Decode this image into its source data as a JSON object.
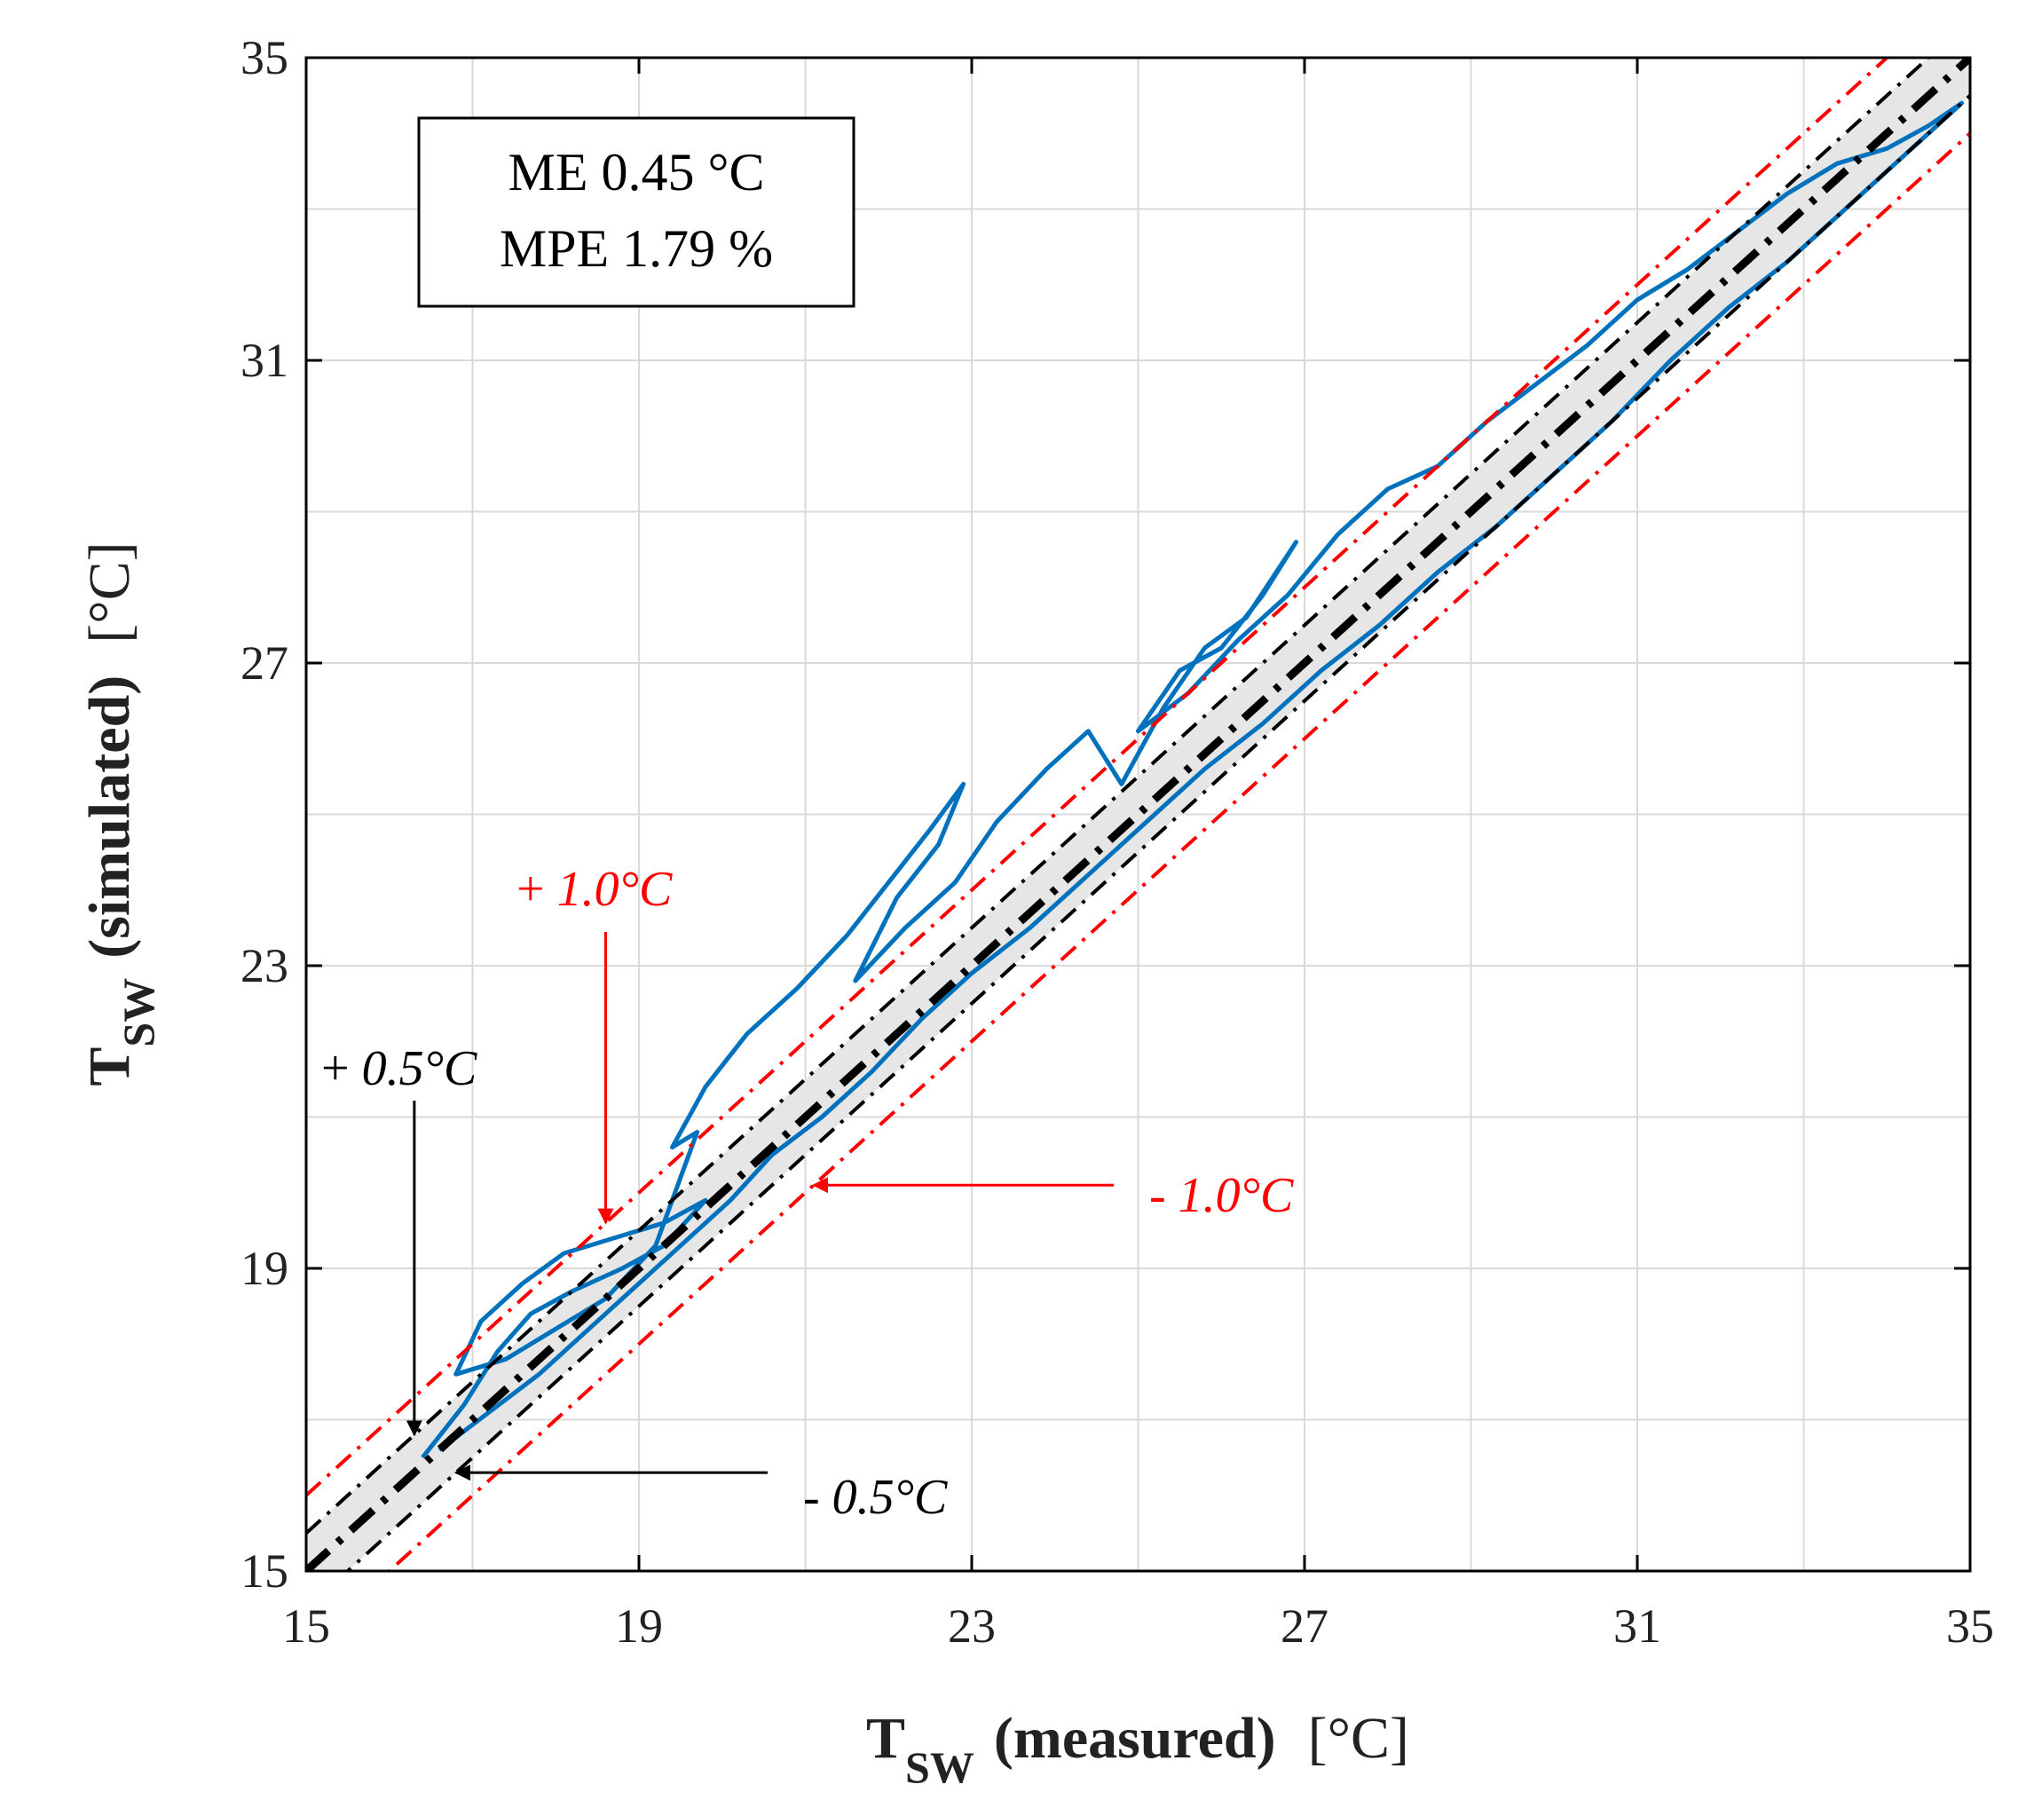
{
  "chart_data": {
    "type": "scatter",
    "title": "",
    "xlabel": {
      "main": "T",
      "sub": "SW",
      "qualifier": "(measured)",
      "unit": "[°C]"
    },
    "ylabel": {
      "main": "T",
      "sub": "SW",
      "qualifier": "(simulated)",
      "unit": "[°C]"
    },
    "xlim": [
      15,
      35
    ],
    "ylim": [
      15,
      35
    ],
    "xticks": [
      15,
      19,
      23,
      27,
      31,
      35
    ],
    "yticks": [
      15,
      19,
      23,
      27,
      31,
      35
    ],
    "xtick_labels": [
      "15",
      "19",
      "23",
      "27",
      "31",
      "35"
    ],
    "ytick_labels": [
      "15",
      "19",
      "23",
      "27",
      "31",
      "35"
    ],
    "grid": true,
    "minor_grid_step": 2,
    "stats": {
      "me": "ME 0.45 °C",
      "mpe": "MPE 1.79 %"
    },
    "band_fill_offset": 0.5,
    "reference_lines": [
      {
        "name": "identity",
        "offset": 0,
        "color": "#000000",
        "label": ""
      },
      {
        "name": "plus-0.5",
        "offset": 0.5,
        "color": "#000000",
        "label": "+ 0.5°C"
      },
      {
        "name": "minus-0.5",
        "offset": -0.5,
        "color": "#000000",
        "label": "- 0.5°C"
      },
      {
        "name": "plus-1.0",
        "offset": 1.0,
        "color": "#ff0000",
        "label": "+ 1.0°C"
      },
      {
        "name": "minus-1.0",
        "offset": -1.0,
        "color": "#ff0000",
        "label": "- 1.0°C"
      }
    ],
    "series": [
      {
        "name": "simulated-vs-measured",
        "color": "#0072bd",
        "x": [
          16.4,
          16.9,
          17.3,
          17.7,
          18.2,
          18.8,
          19.3,
          19.8,
          19.3,
          18.7,
          18.1,
          17.6,
          17.1,
          16.8,
          17.4,
          18.0,
          18.6,
          19.2,
          19.7,
          19.4,
          19.8,
          20.3,
          20.9,
          21.5,
          22.0,
          22.5,
          22.9,
          22.6,
          22.1,
          21.6,
          22.2,
          22.8,
          23.3,
          23.9,
          24.4,
          24.8,
          25.3,
          25.8,
          26.3,
          26.9,
          26.5,
          26.0,
          25.5,
          25.0,
          25.6,
          26.2,
          26.8,
          27.4,
          28.0,
          28.6,
          29.2,
          29.8,
          30.4,
          31.0,
          31.6,
          32.2,
          32.8,
          33.4,
          34.0,
          34.5,
          34.9,
          34.2,
          33.5,
          32.8,
          32.1,
          31.4,
          30.7,
          30.0,
          29.3,
          28.6,
          27.9,
          27.2,
          26.5,
          25.8,
          25.1,
          24.4,
          23.7,
          23.0,
          22.4,
          21.8,
          21.2,
          20.6,
          20.1,
          19.6,
          19.0,
          18.4,
          17.8,
          17.2,
          16.6
        ],
        "y": [
          16.5,
          17.2,
          17.9,
          18.4,
          18.7,
          19.0,
          19.3,
          19.9,
          19.6,
          19.4,
          19.2,
          18.8,
          18.3,
          17.6,
          17.8,
          18.2,
          18.6,
          19.3,
          20.8,
          20.6,
          21.4,
          22.1,
          22.7,
          23.4,
          24.1,
          24.8,
          25.4,
          24.6,
          23.9,
          22.8,
          23.5,
          24.1,
          24.9,
          25.6,
          26.1,
          25.4,
          26.4,
          27.2,
          27.6,
          28.6,
          27.9,
          27.2,
          26.9,
          26.1,
          26.6,
          27.3,
          27.9,
          28.7,
          29.3,
          29.6,
          30.2,
          30.7,
          31.2,
          31.8,
          32.2,
          32.7,
          33.2,
          33.6,
          33.8,
          34.1,
          34.4,
          33.7,
          33.0,
          32.3,
          31.7,
          31.0,
          30.2,
          29.5,
          28.8,
          28.2,
          27.5,
          26.9,
          26.2,
          25.6,
          24.9,
          24.2,
          23.5,
          22.9,
          22.3,
          21.6,
          21.0,
          20.5,
          19.9,
          19.4,
          18.8,
          18.2,
          17.6,
          17.1,
          16.6
        ]
      }
    ],
    "annotations": [
      {
        "name": "plus-0.5",
        "text": "+ 0.5°C",
        "prefix": "+ ",
        "value": "0.5°C",
        "color": "#000000",
        "target": [
          16.3,
          16.8
        ]
      },
      {
        "name": "minus-0.5",
        "text": "- 0.5°C",
        "prefix": "- ",
        "value": "0.5°C",
        "color": "#000000",
        "target": [
          16.8,
          16.3
        ]
      },
      {
        "name": "plus-1.0",
        "text": "+ 1.0°C",
        "prefix": "+ ",
        "value": "1.0°C",
        "color": "#ff0000",
        "target": [
          18.6,
          19.6
        ]
      },
      {
        "name": "minus-1.0",
        "text": "- 1.0°C",
        "prefix": "- ",
        "value": "1.0°C",
        "color": "#ff0000",
        "target": [
          21.1,
          20.1
        ]
      }
    ]
  }
}
